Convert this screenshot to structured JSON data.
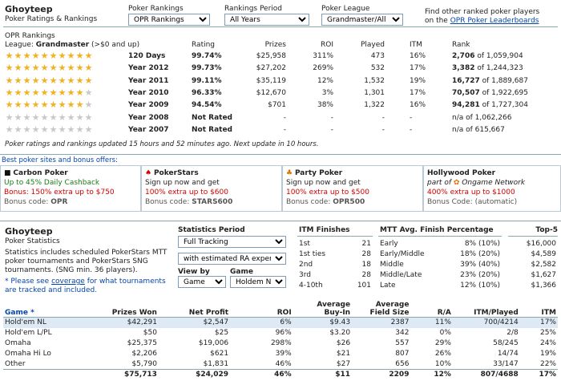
{
  "player": {
    "name": "Ghoyteep",
    "subtitle": "Poker Ratings & Rankings"
  },
  "filters": {
    "rankings_label": "Poker Rankings",
    "rankings_value": "OPR Rankings",
    "period_label": "Rankings Period",
    "period_value": "All Years",
    "league_label": "Poker League",
    "league_value": "Grandmaster/All"
  },
  "find_other": {
    "line1": "Find other ranked poker players",
    "line2_prefix": "on the ",
    "link": "OPR Poker Leaderboards"
  },
  "opr": {
    "title": "OPR Rankings",
    "league_prefix": "League: ",
    "league_name": "Grandmaster",
    "league_suffix": " (>$0 and up)",
    "headers": {
      "rating": "Rating",
      "prizes": "Prizes",
      "roi": "ROI",
      "played": "Played",
      "itm": "ITM",
      "rank": "Rank"
    },
    "rows": [
      {
        "stars": 10,
        "period": "120 Days",
        "rating": "99.74%",
        "prizes": "$25,958",
        "roi": "311%",
        "played": "473",
        "itm": "16%",
        "rank_bold": "2,706",
        "rank_rest": " of 1,059,904"
      },
      {
        "stars": 10,
        "period": "Year 2012",
        "rating": "99.73%",
        "prizes": "$27,202",
        "roi": "269%",
        "played": "532",
        "itm": "17%",
        "rank_bold": "3,382",
        "rank_rest": " of 1,244,323"
      },
      {
        "stars": 10,
        "period": "Year 2011",
        "rating": "99.11%",
        "prizes": "$35,119",
        "roi": "12%",
        "played": "1,532",
        "itm": "19%",
        "rank_bold": "16,727",
        "rank_rest": " of 1,889,687"
      },
      {
        "stars": 9,
        "period": "Year 2010",
        "rating": "96.33%",
        "prizes": "$12,670",
        "roi": "3%",
        "played": "1,301",
        "itm": "17%",
        "rank_bold": "70,507",
        "rank_rest": " of 1,922,695"
      },
      {
        "stars": 9,
        "period": "Year 2009",
        "rating": "94.54%",
        "prizes": "$701",
        "roi": "38%",
        "played": "1,322",
        "itm": "16%",
        "rank_bold": "94,281",
        "rank_rest": " of 1,727,304"
      },
      {
        "stars": 0,
        "period": "Year 2008",
        "rating": "Not Rated",
        "prizes": "-",
        "roi": "-",
        "played": "-",
        "itm": "-",
        "rank_bold": "",
        "rank_rest": "n/a of 1,062,266"
      },
      {
        "stars": 0,
        "period": "Year 2007",
        "rating": "Not Rated",
        "prizes": "-",
        "roi": "-",
        "played": "-",
        "itm": "-",
        "rank_bold": "",
        "rank_rest": "n/a of 615,667"
      }
    ],
    "update_note": "Poker ratings and rankings updated 15 hours and 52 minutes ago. Next update in 10 hours."
  },
  "offers": {
    "title": "Best poker sites and bonus offers:",
    "sites": [
      {
        "name": "Carbon Poker",
        "line1": "Up to 45% Daily Cashback",
        "line2": "Bonus: 150% extra up to $750",
        "code_label": "Bonus code: ",
        "code": "OPR"
      },
      {
        "name": "PokerStars",
        "line1": "Sign up now and get",
        "line2": "100% extra up to $600",
        "code_label": "Bonus code: ",
        "code": "STARS600"
      },
      {
        "name": "Party Poker",
        "line1": "Sign up now and get",
        "line2": "100% extra up to $500",
        "code_label": "Bonus code: ",
        "code": "OPR500"
      },
      {
        "name": "Hollywood Poker",
        "line1_prefix": "part of ",
        "line1_link": "Ongame Network",
        "line2": "400% extra up to $1000",
        "code_label": "Bonus Code: (automatic)",
        "code": ""
      }
    ]
  },
  "stats": {
    "name": "Ghoyteep",
    "subtitle": "Poker Statistics",
    "desc": "Statistics includes scheduled PokerStars MTT poker tournaments and PokerStars SNG tournaments. (SNG min. 36 players).",
    "note_prefix": "* Please see ",
    "note_link": "coverage",
    "note_suffix": " for what tournaments are tracked and included.",
    "period_label": "Statistics Period",
    "period_value": "Full Tracking",
    "ra_value": "with estimated RA expenses",
    "viewby_label": "View by",
    "viewby_value": "Game",
    "game_label": "Game",
    "game_value": "Holdem NL"
  },
  "itm_finishes": {
    "title": "ITM Finishes",
    "rows": [
      {
        "label": "1st",
        "value": "21"
      },
      {
        "label": "1st ties",
        "value": "28"
      },
      {
        "label": "2nd",
        "value": "18"
      },
      {
        "label": "3rd",
        "value": "28"
      },
      {
        "label": "4-10th",
        "value": "101"
      }
    ]
  },
  "mtt_finish": {
    "title": "MTT Avg. Finish Percentage",
    "rows": [
      {
        "label": "Early",
        "value": "8% (10%)"
      },
      {
        "label": "Early/Middle",
        "value": "18% (20%)"
      },
      {
        "label": "Middle",
        "value": "39% (40%)"
      },
      {
        "label": "Middle/Late",
        "value": "23% (20%)"
      },
      {
        "label": "Late",
        "value": "12% (10%)"
      }
    ]
  },
  "top5": {
    "title": "Top-5",
    "values": [
      "$16,000",
      "$4,589",
      "$2,582",
      "$1,627",
      "$1,366"
    ]
  },
  "games": {
    "headers": {
      "game": "Game *",
      "prizes": "Prizes Won",
      "profit": "Net Profit",
      "roi": "ROI",
      "buyin_1": "Average",
      "buyin_2": "Buy-In",
      "field_1": "Average",
      "field_2": "Field Size",
      "ra": "R/A",
      "itm_played": "ITM/Played",
      "itm": "ITM"
    },
    "rows": [
      {
        "game": "Hold'em NL",
        "prizes": "$42,291",
        "profit": "$2,547",
        "roi": "6%",
        "buyin": "$9.43",
        "field": "2387",
        "ra": "11%",
        "itm_played": "700/4214",
        "itm": "17%"
      },
      {
        "game": "Hold'em L/PL",
        "prizes": "$50",
        "profit": "$25",
        "roi": "96%",
        "buyin": "$3.20",
        "field": "342",
        "ra": "0%",
        "itm_played": "2/8",
        "itm": "25%"
      },
      {
        "game": "Omaha",
        "prizes": "$25,375",
        "profit": "$19,006",
        "roi": "298%",
        "buyin": "$26",
        "field": "557",
        "ra": "29%",
        "itm_played": "58/245",
        "itm": "24%"
      },
      {
        "game": "Omaha Hi Lo",
        "prizes": "$2,206",
        "profit": "$621",
        "roi": "39%",
        "buyin": "$21",
        "field": "807",
        "ra": "26%",
        "itm_played": "14/74",
        "itm": "19%"
      },
      {
        "game": "Other",
        "prizes": "$5,790",
        "profit": "$1,831",
        "roi": "46%",
        "buyin": "$27",
        "field": "656",
        "ra": "10%",
        "itm_played": "33/147",
        "itm": "22%"
      }
    ],
    "total": {
      "prizes": "$75,713",
      "profit": "$24,029",
      "roi": "46%",
      "buyin": "$11",
      "field": "2209",
      "ra": "12%",
      "itm_played": "807/4688",
      "itm": "17%"
    }
  }
}
